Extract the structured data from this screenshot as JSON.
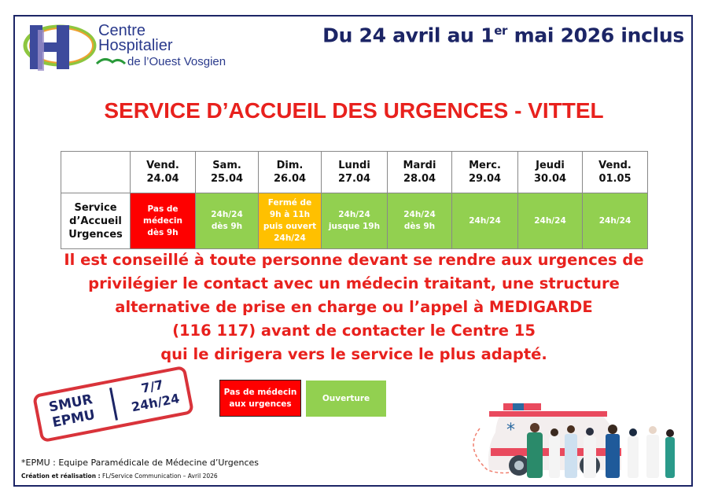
{
  "logo": {
    "line1": "Centre",
    "line2": "Hospitalier",
    "line3": "de l’Ouest Vosgien",
    "letter": "H"
  },
  "header": {
    "date_prefix": "Du 24 avril au 1",
    "date_sup": "er",
    "date_suffix": " mai 2026 inclus"
  },
  "title": "SERVICE D’ACCUEIL DES URGENCES - VITTEL",
  "table": {
    "row_label": [
      "Service",
      "d’Accueil",
      "Urgences"
    ],
    "columns": [
      {
        "day": "Vend.",
        "date": "24.04",
        "status": [
          "Pas de",
          "médecin",
          "dès 9h"
        ],
        "color": "red"
      },
      {
        "day": "Sam.",
        "date": "25.04",
        "status": [
          "24h/24",
          "dès 9h"
        ],
        "color": "green"
      },
      {
        "day": "Dim.",
        "date": "26.04",
        "status": [
          "Fermé de",
          "9h à 11h",
          "puis ouvert",
          "24h/24"
        ],
        "color": "orange"
      },
      {
        "day": "Lundi",
        "date": "27.04",
        "status": [
          "24h/24",
          "jusque 19h"
        ],
        "color": "green"
      },
      {
        "day": "Mardi",
        "date": "28.04",
        "status": [
          "24h/24",
          "dès 9h"
        ],
        "color": "green"
      },
      {
        "day": "Merc.",
        "date": "29.04",
        "status": [
          "24h/24"
        ],
        "color": "green"
      },
      {
        "day": "Jeudi",
        "date": "30.04",
        "status": [
          "24h/24"
        ],
        "color": "green"
      },
      {
        "day": "Vend.",
        "date": "01.05",
        "status": [
          "24h/24"
        ],
        "color": "green"
      }
    ]
  },
  "message": [
    "Il est conseillé à toute personne devant se rendre aux urgences de",
    "privilégier le contact avec un médecin traitant, une structure",
    "alternative de prise en charge ou l’appel à MEDIGARDE",
    "(116 117) avant de contacter le Centre 15",
    "qui le dirigera vers le service le plus adapté."
  ],
  "stamp": {
    "left1": "SMUR",
    "left2": "EPMU",
    "right1": "7/7",
    "right2": "24h/24"
  },
  "legend": {
    "red_line1": "Pas de médecin",
    "red_line2": "aux urgences",
    "green": "Ouverture"
  },
  "colors": {
    "red": "#fe0000",
    "green": "#92d050",
    "orange": "#ffc000",
    "navy": "#1c2566",
    "title_red": "#e8211d"
  },
  "footer": {
    "epmu": "*EPMU : Equipe Paramédicale de Médecine d’Urgences",
    "credit_bold": "Création et réalisation :",
    "credit": " FL/Service Communication – Avril 2026"
  },
  "illustration": "ambulance-with-medical-staff"
}
